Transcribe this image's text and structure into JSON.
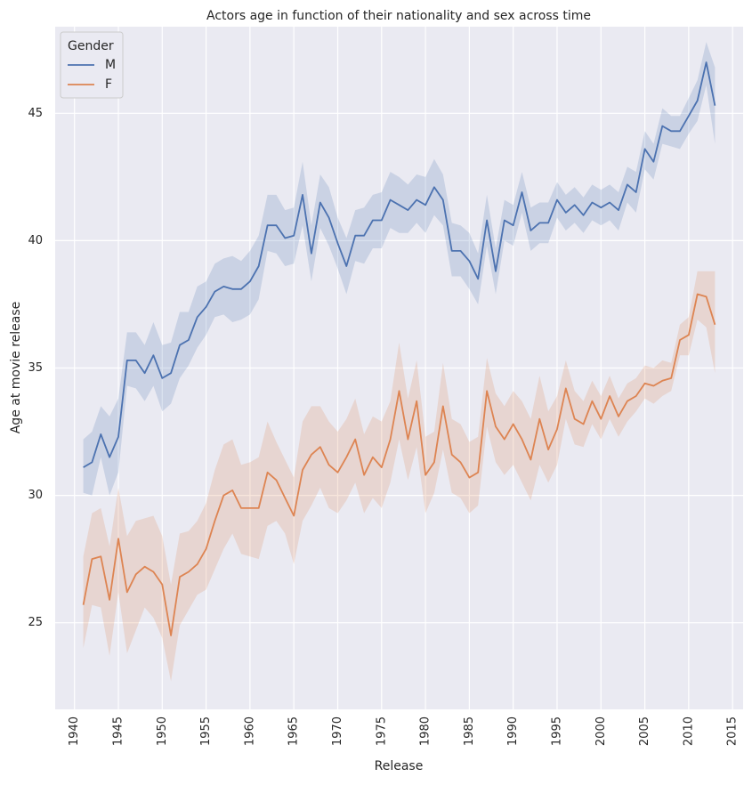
{
  "chart_data": {
    "type": "line",
    "title": "Actors age in function of their nationality and sex across time",
    "xlabel": "Release",
    "ylabel": "Age at movie release",
    "xlim": [
      1937.8,
      2016.2
    ],
    "ylim": [
      21.6,
      48.4
    ],
    "xticks": [
      1940,
      1945,
      1950,
      1955,
      1960,
      1965,
      1970,
      1975,
      1980,
      1985,
      1990,
      1995,
      2000,
      2005,
      2010,
      2015
    ],
    "yticks": [
      25,
      30,
      35,
      40,
      45
    ],
    "grid": true,
    "legend": {
      "title": "Gender",
      "position": "top-left"
    },
    "x": [
      1941,
      1942,
      1943,
      1944,
      1945,
      1946,
      1947,
      1948,
      1949,
      1950,
      1951,
      1952,
      1953,
      1954,
      1955,
      1956,
      1957,
      1958,
      1959,
      1960,
      1961,
      1962,
      1963,
      1964,
      1965,
      1966,
      1967,
      1968,
      1969,
      1970,
      1971,
      1972,
      1973,
      1974,
      1975,
      1976,
      1977,
      1978,
      1979,
      1980,
      1981,
      1982,
      1983,
      1984,
      1985,
      1986,
      1987,
      1988,
      1989,
      1990,
      1991,
      1992,
      1993,
      1994,
      1995,
      1996,
      1997,
      1998,
      1999,
      2000,
      2001,
      2002,
      2003,
      2004,
      2005,
      2006,
      2007,
      2008,
      2009,
      2010,
      2011,
      2012,
      2013
    ],
    "series": [
      {
        "name": "M",
        "color": "#4c72b0",
        "values": [
          31.1,
          31.3,
          32.4,
          31.5,
          32.3,
          35.3,
          35.3,
          34.8,
          35.5,
          34.6,
          34.8,
          35.9,
          36.1,
          37.0,
          37.4,
          38.0,
          38.2,
          38.1,
          38.1,
          38.4,
          39.0,
          40.6,
          40.6,
          40.1,
          40.2,
          41.8,
          39.5,
          41.5,
          40.9,
          39.9,
          39.0,
          40.2,
          40.2,
          40.8,
          40.8,
          41.6,
          41.4,
          41.2,
          41.6,
          41.4,
          42.1,
          41.6,
          39.6,
          39.6,
          39.2,
          38.5,
          40.8,
          38.8,
          40.8,
          40.6,
          41.9,
          40.4,
          40.7,
          40.7,
          41.6,
          41.1,
          41.4,
          41.0,
          41.5,
          41.3,
          41.5,
          41.2,
          42.2,
          41.9,
          43.6,
          43.1,
          44.5,
          44.3,
          44.3,
          44.9,
          45.5,
          47.0,
          45.3
        ],
        "ci_low": [
          30.1,
          30.0,
          31.5,
          30.0,
          30.9,
          34.3,
          34.2,
          33.7,
          34.3,
          33.3,
          33.6,
          34.6,
          35.1,
          35.8,
          36.3,
          37.0,
          37.1,
          36.8,
          36.9,
          37.1,
          37.7,
          39.6,
          39.5,
          39.0,
          39.1,
          40.6,
          38.4,
          40.5,
          39.8,
          38.9,
          37.9,
          39.2,
          39.1,
          39.7,
          39.7,
          40.5,
          40.3,
          40.3,
          40.7,
          40.3,
          41.0,
          40.6,
          38.6,
          38.6,
          38.1,
          37.5,
          39.8,
          37.9,
          40.0,
          39.8,
          41.1,
          39.6,
          39.9,
          39.9,
          40.9,
          40.4,
          40.7,
          40.3,
          40.8,
          40.6,
          40.8,
          40.4,
          41.5,
          41.1,
          42.8,
          42.4,
          43.8,
          43.7,
          43.6,
          44.2,
          44.7,
          46.1,
          43.8
        ],
        "ci_high": [
          32.2,
          32.5,
          33.5,
          33.1,
          33.8,
          36.4,
          36.4,
          35.9,
          36.8,
          35.9,
          36.0,
          37.2,
          37.2,
          38.2,
          38.4,
          39.1,
          39.3,
          39.4,
          39.2,
          39.6,
          40.2,
          41.8,
          41.8,
          41.2,
          41.3,
          43.1,
          40.6,
          42.6,
          42.1,
          40.9,
          40.1,
          41.2,
          41.3,
          41.8,
          41.9,
          42.7,
          42.5,
          42.2,
          42.6,
          42.5,
          43.2,
          42.6,
          40.7,
          40.6,
          40.3,
          39.5,
          41.8,
          39.7,
          41.6,
          41.4,
          42.7,
          41.3,
          41.5,
          41.5,
          42.3,
          41.8,
          42.1,
          41.7,
          42.2,
          42.0,
          42.2,
          41.9,
          42.9,
          42.7,
          44.3,
          43.8,
          45.2,
          44.9,
          44.9,
          45.6,
          46.3,
          47.8,
          46.8
        ]
      },
      {
        "name": "F",
        "color": "#dd8452",
        "values": [
          25.7,
          27.5,
          27.6,
          25.9,
          28.3,
          26.2,
          26.9,
          27.2,
          27.0,
          26.5,
          24.5,
          26.8,
          27.0,
          27.3,
          27.9,
          29.0,
          30.0,
          30.2,
          29.5,
          29.5,
          29.5,
          30.9,
          30.6,
          29.9,
          29.2,
          31.0,
          31.6,
          31.9,
          31.2,
          30.9,
          31.5,
          32.2,
          30.8,
          31.5,
          31.1,
          32.2,
          34.1,
          32.2,
          33.7,
          30.8,
          31.3,
          33.5,
          31.6,
          31.3,
          30.7,
          30.9,
          34.1,
          32.7,
          32.2,
          32.8,
          32.2,
          31.4,
          33.0,
          31.8,
          32.6,
          34.2,
          33.0,
          32.8,
          33.7,
          33.0,
          33.9,
          33.1,
          33.7,
          33.9,
          34.4,
          34.3,
          34.5,
          34.6,
          36.1,
          36.3,
          37.9,
          37.8,
          36.7
        ],
        "ci_low": [
          24.0,
          25.7,
          25.6,
          23.7,
          26.2,
          23.8,
          24.7,
          25.6,
          25.2,
          24.4,
          22.7,
          24.9,
          25.5,
          26.1,
          26.3,
          27.1,
          27.9,
          28.5,
          27.7,
          27.6,
          27.5,
          28.8,
          29.0,
          28.5,
          27.3,
          29.0,
          29.6,
          30.3,
          29.5,
          29.3,
          29.8,
          30.5,
          29.3,
          29.9,
          29.5,
          30.5,
          32.2,
          30.6,
          31.9,
          29.3,
          30.1,
          31.8,
          30.1,
          29.9,
          29.3,
          29.6,
          32.7,
          31.3,
          30.8,
          31.2,
          30.5,
          29.8,
          31.2,
          30.5,
          31.2,
          33.0,
          32.0,
          31.9,
          32.8,
          32.2,
          33.0,
          32.3,
          32.9,
          33.3,
          33.8,
          33.6,
          33.9,
          34.1,
          35.5,
          35.5,
          36.9,
          36.6,
          34.8
        ],
        "ci_high": [
          27.6,
          29.3,
          29.5,
          28.0,
          30.3,
          28.4,
          29.0,
          29.1,
          29.2,
          28.4,
          26.5,
          28.5,
          28.6,
          29.0,
          29.7,
          31.0,
          32.0,
          32.2,
          31.2,
          31.3,
          31.5,
          32.9,
          32.1,
          31.4,
          30.7,
          32.9,
          33.5,
          33.5,
          32.9,
          32.5,
          33.0,
          33.8,
          32.4,
          33.1,
          32.9,
          33.7,
          36.0,
          33.8,
          35.3,
          32.3,
          32.5,
          35.2,
          33.0,
          32.8,
          32.1,
          32.3,
          35.4,
          34.0,
          33.5,
          34.1,
          33.7,
          33.0,
          34.7,
          33.3,
          33.9,
          35.3,
          34.1,
          33.7,
          34.5,
          33.9,
          34.7,
          33.8,
          34.4,
          34.6,
          35.1,
          35.0,
          35.3,
          35.2,
          36.7,
          37.0,
          38.8,
          38.8,
          38.8
        ]
      }
    ]
  }
}
